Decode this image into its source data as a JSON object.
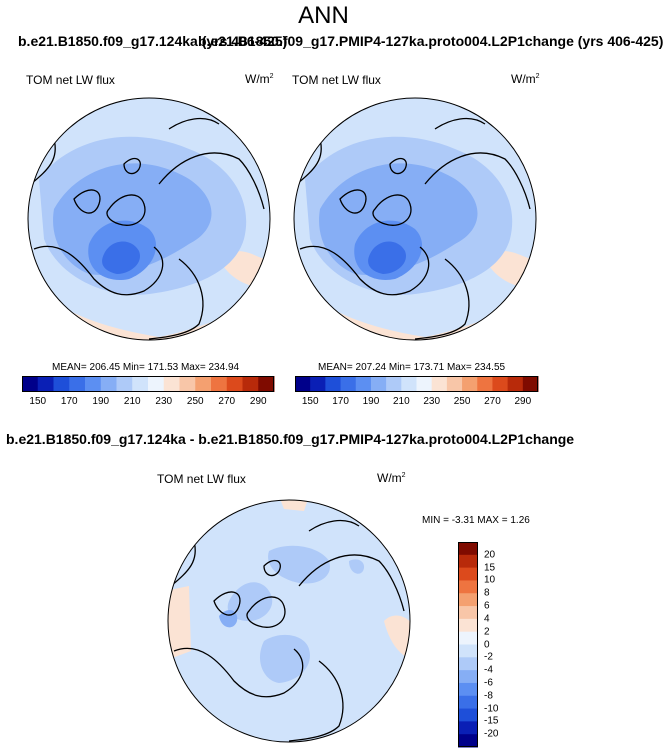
{
  "figure": {
    "title": "ANN",
    "top_left_run_label": "b.e21.B1850.f09_g17.124ka (yrs 406-425)",
    "top_right_run_label": "b.e21.B1850.f09_g17.PMIP4-127ka.proto004.L2P1change (yrs 406-425)",
    "diff_run_label": "b.e21.B1850.f09_g17.124ka - b.e21.B1850.f09_g17.PMIP4-127ka.proto004.L2P1change"
  },
  "panels": {
    "left": {
      "variable": "TOM net LW flux",
      "units_base": "W/m",
      "units_exp": "2",
      "stats": "MEAN= 206.45  Min= 171.53  Max= 234.94"
    },
    "right": {
      "variable": "TOM net LW flux",
      "units_base": "W/m",
      "units_exp": "2",
      "stats": "MEAN= 207.24  Min= 173.71  Max= 234.55"
    },
    "diff": {
      "variable": "TOM net LW flux",
      "units_base": "W/m",
      "units_exp": "2",
      "stats": "MIN =  -3.31  MAX =   1.26"
    }
  },
  "colorbars": {
    "abs_labels": [
      "150",
      "170",
      "190",
      "210",
      "230",
      "250",
      "270",
      "290"
    ],
    "abs_colors": [
      "#00008a",
      "#0a1fb5",
      "#1e4fd9",
      "#3a6fe8",
      "#5c8ff2",
      "#86aef5",
      "#aecaf8",
      "#d0e3fb",
      "#edf4fd",
      "#fbe3d4",
      "#f8c6a8",
      "#f4a070",
      "#ee7440",
      "#dc4a1c",
      "#b82a0a",
      "#7f0b00"
    ],
    "diff_labels": [
      "20",
      "15",
      "10",
      "8",
      "6",
      "4",
      "2",
      "0",
      "-2",
      "-4",
      "-6",
      "-8",
      "-10",
      "-15",
      "-20"
    ],
    "diff_colors": [
      "#7f0b00",
      "#b82a0a",
      "#dc4a1c",
      "#ee7440",
      "#f4a070",
      "#f8c6a8",
      "#fbe3d4",
      "#edf4fd",
      "#d0e3fb",
      "#aecaf8",
      "#86aef5",
      "#5c8ff2",
      "#3a6fe8",
      "#1e4fd9",
      "#0a1fb5",
      "#00008a"
    ]
  },
  "chart_data": {
    "type": "heatmap",
    "projection": "north polar stereographic",
    "season": "ANN",
    "panels": [
      {
        "name": "124ka",
        "variable": "TOM net LW flux",
        "units": "W/m^2",
        "mean": 206.45,
        "min": 171.53,
        "max": 234.94,
        "levels": [
          150,
          160,
          170,
          180,
          190,
          200,
          210,
          220,
          230,
          240,
          250,
          260,
          270,
          280,
          290
        ]
      },
      {
        "name": "PMIP4-127ka.proto004.L2P1change",
        "variable": "TOM net LW flux",
        "units": "W/m^2",
        "mean": 207.24,
        "min": 173.71,
        "max": 234.55,
        "levels": [
          150,
          160,
          170,
          180,
          190,
          200,
          210,
          220,
          230,
          240,
          250,
          260,
          270,
          280,
          290
        ]
      },
      {
        "name": "124ka - PMIP4-127ka",
        "variable": "TOM net LW flux",
        "units": "W/m^2",
        "min": -3.31,
        "max": 1.26,
        "levels": [
          -20,
          -15,
          -10,
          -8,
          -6,
          -4,
          -2,
          0,
          2,
          4,
          6,
          8,
          10,
          15,
          20
        ]
      }
    ]
  }
}
